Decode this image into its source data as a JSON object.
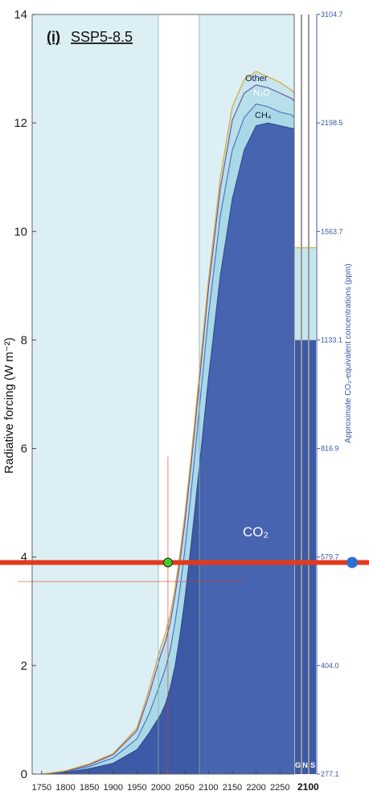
{
  "chart_data": {
    "type": "area",
    "panel_label": "(i)",
    "title": "SSP5-8.5",
    "ylabel": "Radiative forcing (W m⁻²)",
    "y2label": "Approximate CO₂-equivalent concentrations (ppm)",
    "ylim": [
      0,
      14
    ],
    "xlim": [
      1730,
      2280
    ],
    "y_ticks": [
      0,
      2,
      4,
      6,
      8,
      10,
      12,
      14
    ],
    "x_ticks": [
      1750,
      1800,
      1850,
      1900,
      1950,
      2000,
      2050,
      2100,
      2150,
      2200,
      2250
    ],
    "right_ticks": [
      {
        "forcing": 14,
        "label": "3104.7"
      },
      {
        "forcing": 12,
        "label": "2198.5"
      },
      {
        "forcing": 10,
        "label": "1563.7"
      },
      {
        "forcing": 8,
        "label": "1133.1"
      },
      {
        "forcing": 6,
        "label": "816.9"
      },
      {
        "forcing": 4,
        "label": "579.7"
      },
      {
        "forcing": 2,
        "label": "404.0"
      },
      {
        "forcing": 0,
        "label": "277.1"
      }
    ],
    "x": [
      1750,
      1800,
      1850,
      1900,
      1950,
      1975,
      2000,
      2010,
      2020,
      2030,
      2040,
      2050,
      2060,
      2070,
      2080,
      2090,
      2100,
      2125,
      2150,
      2175,
      2200,
      2225,
      2250,
      2275,
      2280
    ],
    "series": [
      {
        "name": "CO₂",
        "values": [
          0.0,
          0.03,
          0.1,
          0.2,
          0.45,
          0.75,
          1.1,
          1.3,
          1.6,
          2.0,
          2.55,
          3.2,
          3.95,
          4.75,
          5.6,
          6.45,
          7.3,
          9.2,
          10.6,
          11.5,
          11.95,
          12.0,
          11.95,
          11.9,
          11.9
        ]
      },
      {
        "name": "CH₄",
        "values": [
          0.0,
          0.04,
          0.14,
          0.3,
          0.65,
          1.1,
          1.7,
          1.95,
          2.3,
          2.8,
          3.4,
          4.1,
          4.9,
          5.75,
          6.65,
          7.55,
          8.45,
          10.3,
          11.5,
          12.1,
          12.35,
          12.3,
          12.2,
          12.15,
          12.1
        ]
      },
      {
        "name": "N₂O",
        "values": [
          0.0,
          0.05,
          0.17,
          0.36,
          0.8,
          1.45,
          2.2,
          2.45,
          2.8,
          3.3,
          3.9,
          4.6,
          5.4,
          6.25,
          7.15,
          8.05,
          8.95,
          10.8,
          12.05,
          12.55,
          12.7,
          12.65,
          12.55,
          12.45,
          12.4
        ]
      },
      {
        "name": "Other",
        "values": [
          0.0,
          0.06,
          0.19,
          0.38,
          0.85,
          1.55,
          2.35,
          2.6,
          2.95,
          3.45,
          4.05,
          4.75,
          5.55,
          6.4,
          7.3,
          8.2,
          9.1,
          11.0,
          12.3,
          12.8,
          12.95,
          12.85,
          12.75,
          12.6,
          12.55
        ]
      }
    ],
    "marker": {
      "x": 2015,
      "y": 3.9
    },
    "highlight_level": 3.9,
    "side_columns": [
      "G",
      "N",
      "S"
    ],
    "side_x_label": "2100",
    "side_values": {
      "CO2": 8.0,
      "top": 9.7
    }
  },
  "colors": {
    "background_shade": "#dceff4",
    "co2_fill": "#3d5aa6",
    "co2_fill_future": "#4664b0",
    "outer_fill": "#c5e6ee",
    "highlight_line": "#e23a1e",
    "marker_fill": "#3ecf1f",
    "right_axis": "#3a56a5",
    "dot": "#2f6fd1"
  }
}
